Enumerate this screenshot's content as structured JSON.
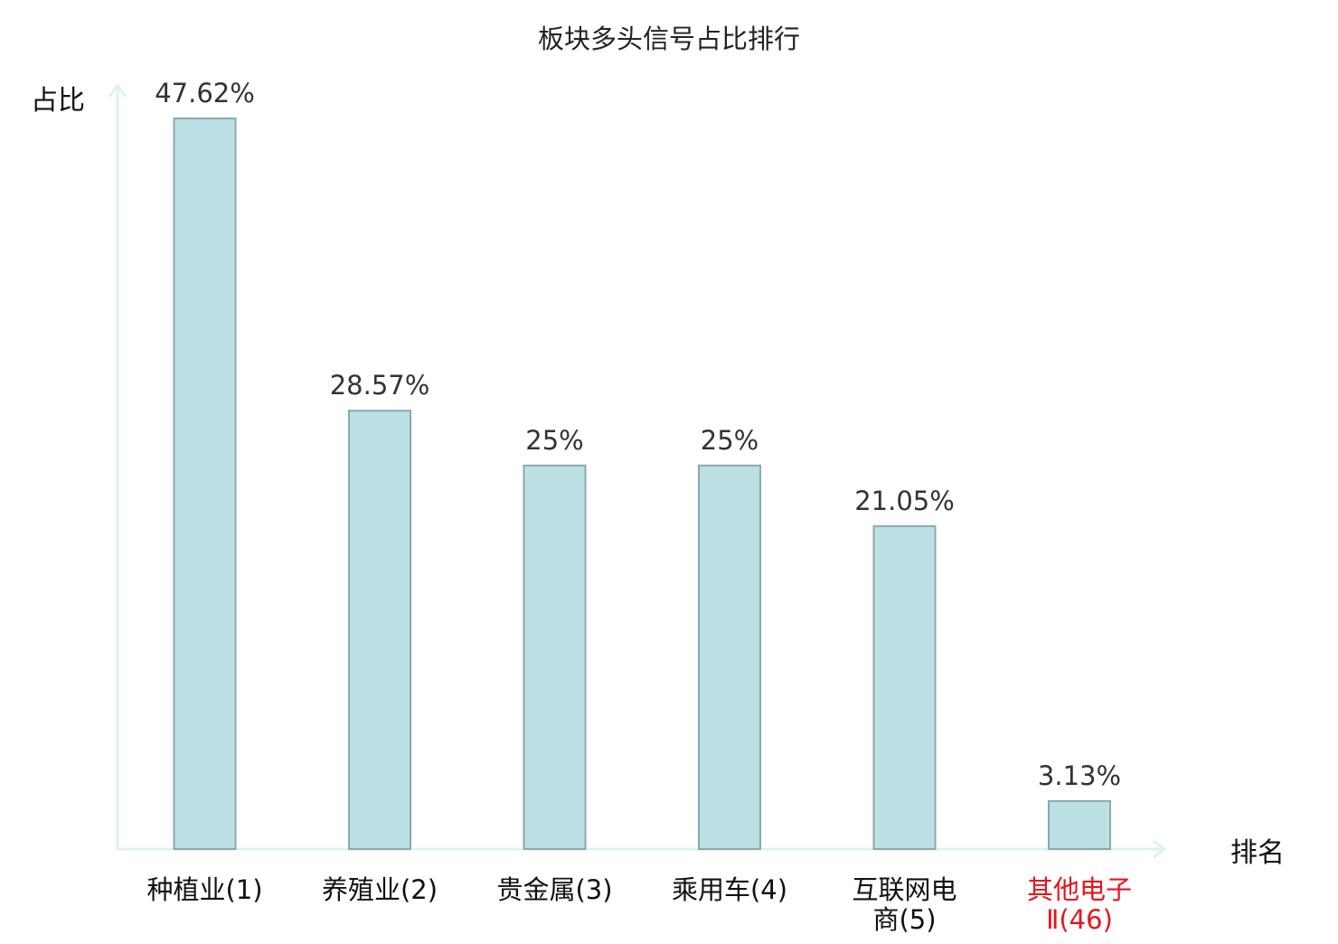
{
  "chart_data": {
    "type": "bar",
    "title": "板块多头信号占比排行",
    "ylabel": "占比",
    "xlabel": "排名",
    "unit": "%",
    "ylim": [
      0,
      50
    ],
    "grid": false,
    "legend": "none",
    "categories": [
      {
        "name_lines": [
          "种植业(1)"
        ],
        "highlight": false
      },
      {
        "name_lines": [
          "养殖业(2)"
        ],
        "highlight": false
      },
      {
        "name_lines": [
          "贵金属(3)"
        ],
        "highlight": false
      },
      {
        "name_lines": [
          "乘用车(4)"
        ],
        "highlight": false
      },
      {
        "name_lines": [
          "互联网电",
          "商(5)"
        ],
        "highlight": false
      },
      {
        "name_lines": [
          "其他电子",
          "Ⅱ(46)"
        ],
        "highlight": true
      }
    ],
    "values": [
      47.62,
      28.57,
      25,
      25,
      21.05,
      3.13
    ],
    "value_labels": [
      "47.62%",
      "28.57%",
      "25%",
      "25%",
      "21.05%",
      "3.13%"
    ],
    "colors": {
      "bar_fill": "#bce0e3",
      "bar_stroke": "#8aa9ad",
      "axis": "#dff2ef",
      "text": "#333333",
      "title": "#222222",
      "highlight": "#e8141b"
    }
  }
}
